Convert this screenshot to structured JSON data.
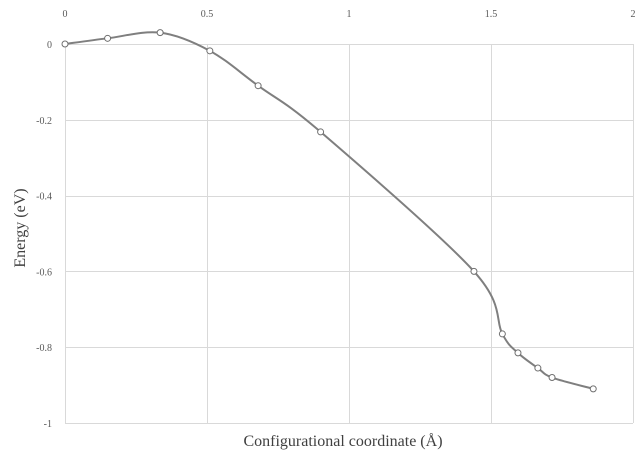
{
  "chart_data": {
    "type": "scatter",
    "title": "",
    "xlabel": "Configurational coordinate (Å)",
    "ylabel": "Energy (eV)",
    "xlim": [
      0,
      2
    ],
    "ylim": [
      -1,
      0
    ],
    "x_ticks": [
      "0",
      "0.5",
      "1",
      "1.5",
      "2"
    ],
    "y_ticks": [
      "0",
      "-0.2",
      "-0.4",
      "-0.6",
      "-0.8",
      "-1"
    ],
    "x_axis_position": "top",
    "grid": true,
    "legend": "none",
    "smooth_line": true,
    "series": [
      {
        "x": [
          0,
          0.15,
          0.335,
          0.51,
          0.68,
          0.9,
          1.44,
          1.54,
          1.595,
          1.665,
          1.715,
          1.86
        ],
        "y": [
          0,
          0.015,
          0.03,
          -0.018,
          -0.11,
          -0.232,
          -0.6,
          -0.765,
          -0.815,
          -0.855,
          -0.88,
          -0.91
        ]
      }
    ],
    "colors": {
      "line": "#7f7f7f",
      "marker_stroke": "#6f6f6f",
      "marker_fill": "#ffffff",
      "grid": "#d9d9d9"
    }
  }
}
